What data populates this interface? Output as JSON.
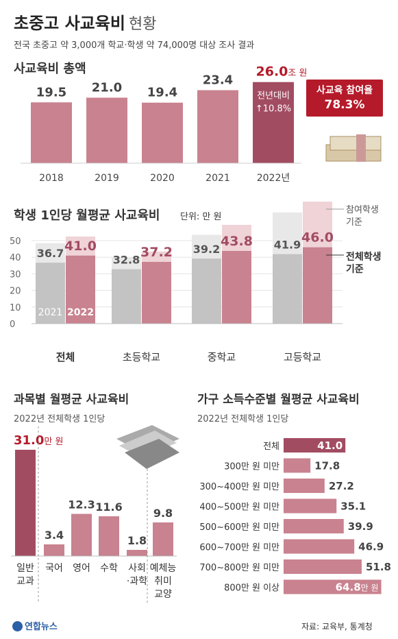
{
  "title": {
    "main": "초중고 사교육비",
    "light": "현황"
  },
  "subtitle": "전국 초중고 약 3,000개 학교·학생 약 74,000명 대상 조사 결과",
  "total": {
    "heading": "사교육비 총액",
    "chart_data": {
      "type": "bar",
      "categories": [
        "2018",
        "2019",
        "2020",
        "2021",
        "2022년"
      ],
      "values": [
        19.5,
        21.0,
        19.4,
        23.4,
        26.0
      ],
      "value_labels": [
        "19.5",
        "21.0",
        "19.4",
        "23.4",
        "26.0"
      ],
      "last_unit": "조 원",
      "yoy_label": "전년대비",
      "yoy_value": "↑10.8%"
    },
    "participation": {
      "label": "사교육 참여율",
      "value": "78.3%"
    }
  },
  "per_student": {
    "heading": "학생 1인당 월평균 사교육비",
    "unit": "단위: 만 원",
    "legend_participating": "참여학생 기준",
    "legend_all": "전체학생 기준",
    "chart_data": {
      "type": "bar",
      "categories": [
        "전체",
        "초등학교",
        "중학교",
        "고등학교"
      ],
      "yticks": [
        "0",
        "10",
        "20",
        "30",
        "40",
        "50"
      ],
      "ylim": [
        0,
        55
      ],
      "series": [
        {
          "name": "2021",
          "values": [
            36.7,
            32.8,
            39.2,
            41.9
          ],
          "labels": [
            "36.7",
            "32.8",
            "39.2",
            "41.9"
          ]
        },
        {
          "name": "2022",
          "values": [
            41.0,
            37.2,
            43.8,
            46.0
          ],
          "labels": [
            "41.0",
            "37.2",
            "43.8",
            "46.0"
          ]
        }
      ],
      "participating_series": [
        {
          "name": "2021",
          "values": [
            48.5,
            40.0,
            53.5,
            67.0
          ]
        },
        {
          "name": "2022",
          "values": [
            52.5,
            43.5,
            59.5,
            73.5
          ]
        }
      ]
    }
  },
  "subject": {
    "heading": "과목별 월평균 사교육비",
    "sub": "2022년 전체학생 1인당",
    "first_unit": "만 원",
    "chart_data": {
      "type": "bar",
      "categories": [
        [
          "일반",
          "교과"
        ],
        [
          "국어"
        ],
        [
          "영어"
        ],
        [
          "수학"
        ],
        [
          "사회",
          "·과학"
        ],
        [
          "예체능",
          "취미",
          "교양"
        ]
      ],
      "values": [
        31.0,
        3.4,
        12.3,
        11.6,
        1.8,
        9.8
      ],
      "labels": [
        "31.0",
        "3.4",
        "12.3",
        "11.6",
        "1.8",
        "9.8"
      ]
    }
  },
  "income": {
    "heading": "가구 소득수준별 월평균 사교육비",
    "sub": "2022년 전체학생 1인당",
    "last_unit": "만 원",
    "chart_data": {
      "type": "bar",
      "orientation": "horizontal",
      "categories": [
        "전체",
        "300만 원 미만",
        "300~400만 원 미만",
        "400~500만 원 미만",
        "500~600만 원 미만",
        "600~700만 원 미만",
        "700~800만 원 미만",
        "800만 원 이상"
      ],
      "values": [
        41.0,
        17.8,
        27.2,
        35.1,
        39.9,
        46.9,
        51.8,
        64.8
      ],
      "labels": [
        "41.0",
        "17.8",
        "27.2",
        "35.1",
        "39.9",
        "46.9",
        "51.8",
        "64.8"
      ]
    }
  },
  "source": "자료: 교육부, 통계청",
  "logo": "연합뉴스",
  "colors": {
    "pink": "#c9828f",
    "dark": "#a24c62",
    "gray": "#c4c3c3",
    "pale_pink": "#efd3d7",
    "pale_gray": "#e9e8e8",
    "red": "#b51a2a"
  }
}
